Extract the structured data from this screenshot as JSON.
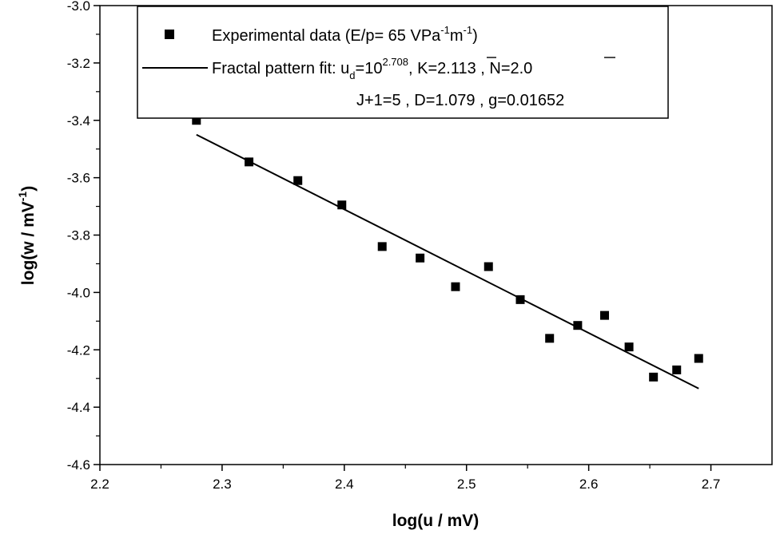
{
  "chart_data": {
    "type": "scatter",
    "xlabel": "log(u / mV)",
    "ylabel_main": "log(w / mV",
    "ylabel_sup": "-1",
    "ylabel_end": ")",
    "xlim": [
      2.2,
      2.75
    ],
    "ylim": [
      -4.6,
      -3.0
    ],
    "xticks": [
      2.2,
      2.3,
      2.4,
      2.5,
      2.6,
      2.7
    ],
    "xtick_labels": [
      "2.2",
      "2.3",
      "2.4",
      "2.5",
      "2.6",
      "2.7"
    ],
    "yticks": [
      -4.6,
      -4.4,
      -4.2,
      -4.0,
      -3.8,
      -3.6,
      -3.4,
      -3.2,
      -3.0
    ],
    "ytick_labels": [
      "-4.6",
      "-4.4",
      "-4.2",
      "-4.0",
      "-3.8",
      "-3.6",
      "-3.4",
      "-3.2",
      "-3.0"
    ],
    "grid": false,
    "legend_position": "top-right",
    "series": [
      {
        "kind": "points",
        "x": [
          2.279,
          2.322,
          2.362,
          2.398,
          2.431,
          2.462,
          2.491,
          2.518,
          2.544,
          2.568,
          2.591,
          2.613,
          2.633,
          2.653,
          2.672,
          2.69
        ],
        "y": [
          -3.4,
          -3.545,
          -3.61,
          -3.695,
          -3.84,
          -3.88,
          -3.98,
          -3.91,
          -4.025,
          -4.16,
          -4.115,
          -4.08,
          -4.19,
          -4.295,
          -4.27,
          -4.23
        ]
      },
      {
        "kind": "line",
        "x": [
          2.279,
          2.3,
          2.35,
          2.4,
          2.45,
          2.5,
          2.55,
          2.6,
          2.65,
          2.69
        ],
        "y": [
          -3.45,
          -3.494,
          -3.603,
          -3.707,
          -3.811,
          -3.915,
          -4.022,
          -4.128,
          -4.238,
          -4.335
        ]
      }
    ],
    "legend": {
      "scatter_label_main": "Experimental data (E/p= 65 VPa",
      "scatter_sup1": "-1",
      "scatter_mid": "m",
      "scatter_sup2": "-1",
      "scatter_end": ")",
      "fit_prefix": "Fractal pattern fit: u",
      "fit_sub": "d",
      "fit_eq": "=10",
      "fit_sup": "2.708",
      "fit_k": ", K=2.113 ,  N=2.0",
      "fit_line2": "J+1=5 ,  D=1.079 ,  g=0.01652"
    }
  }
}
